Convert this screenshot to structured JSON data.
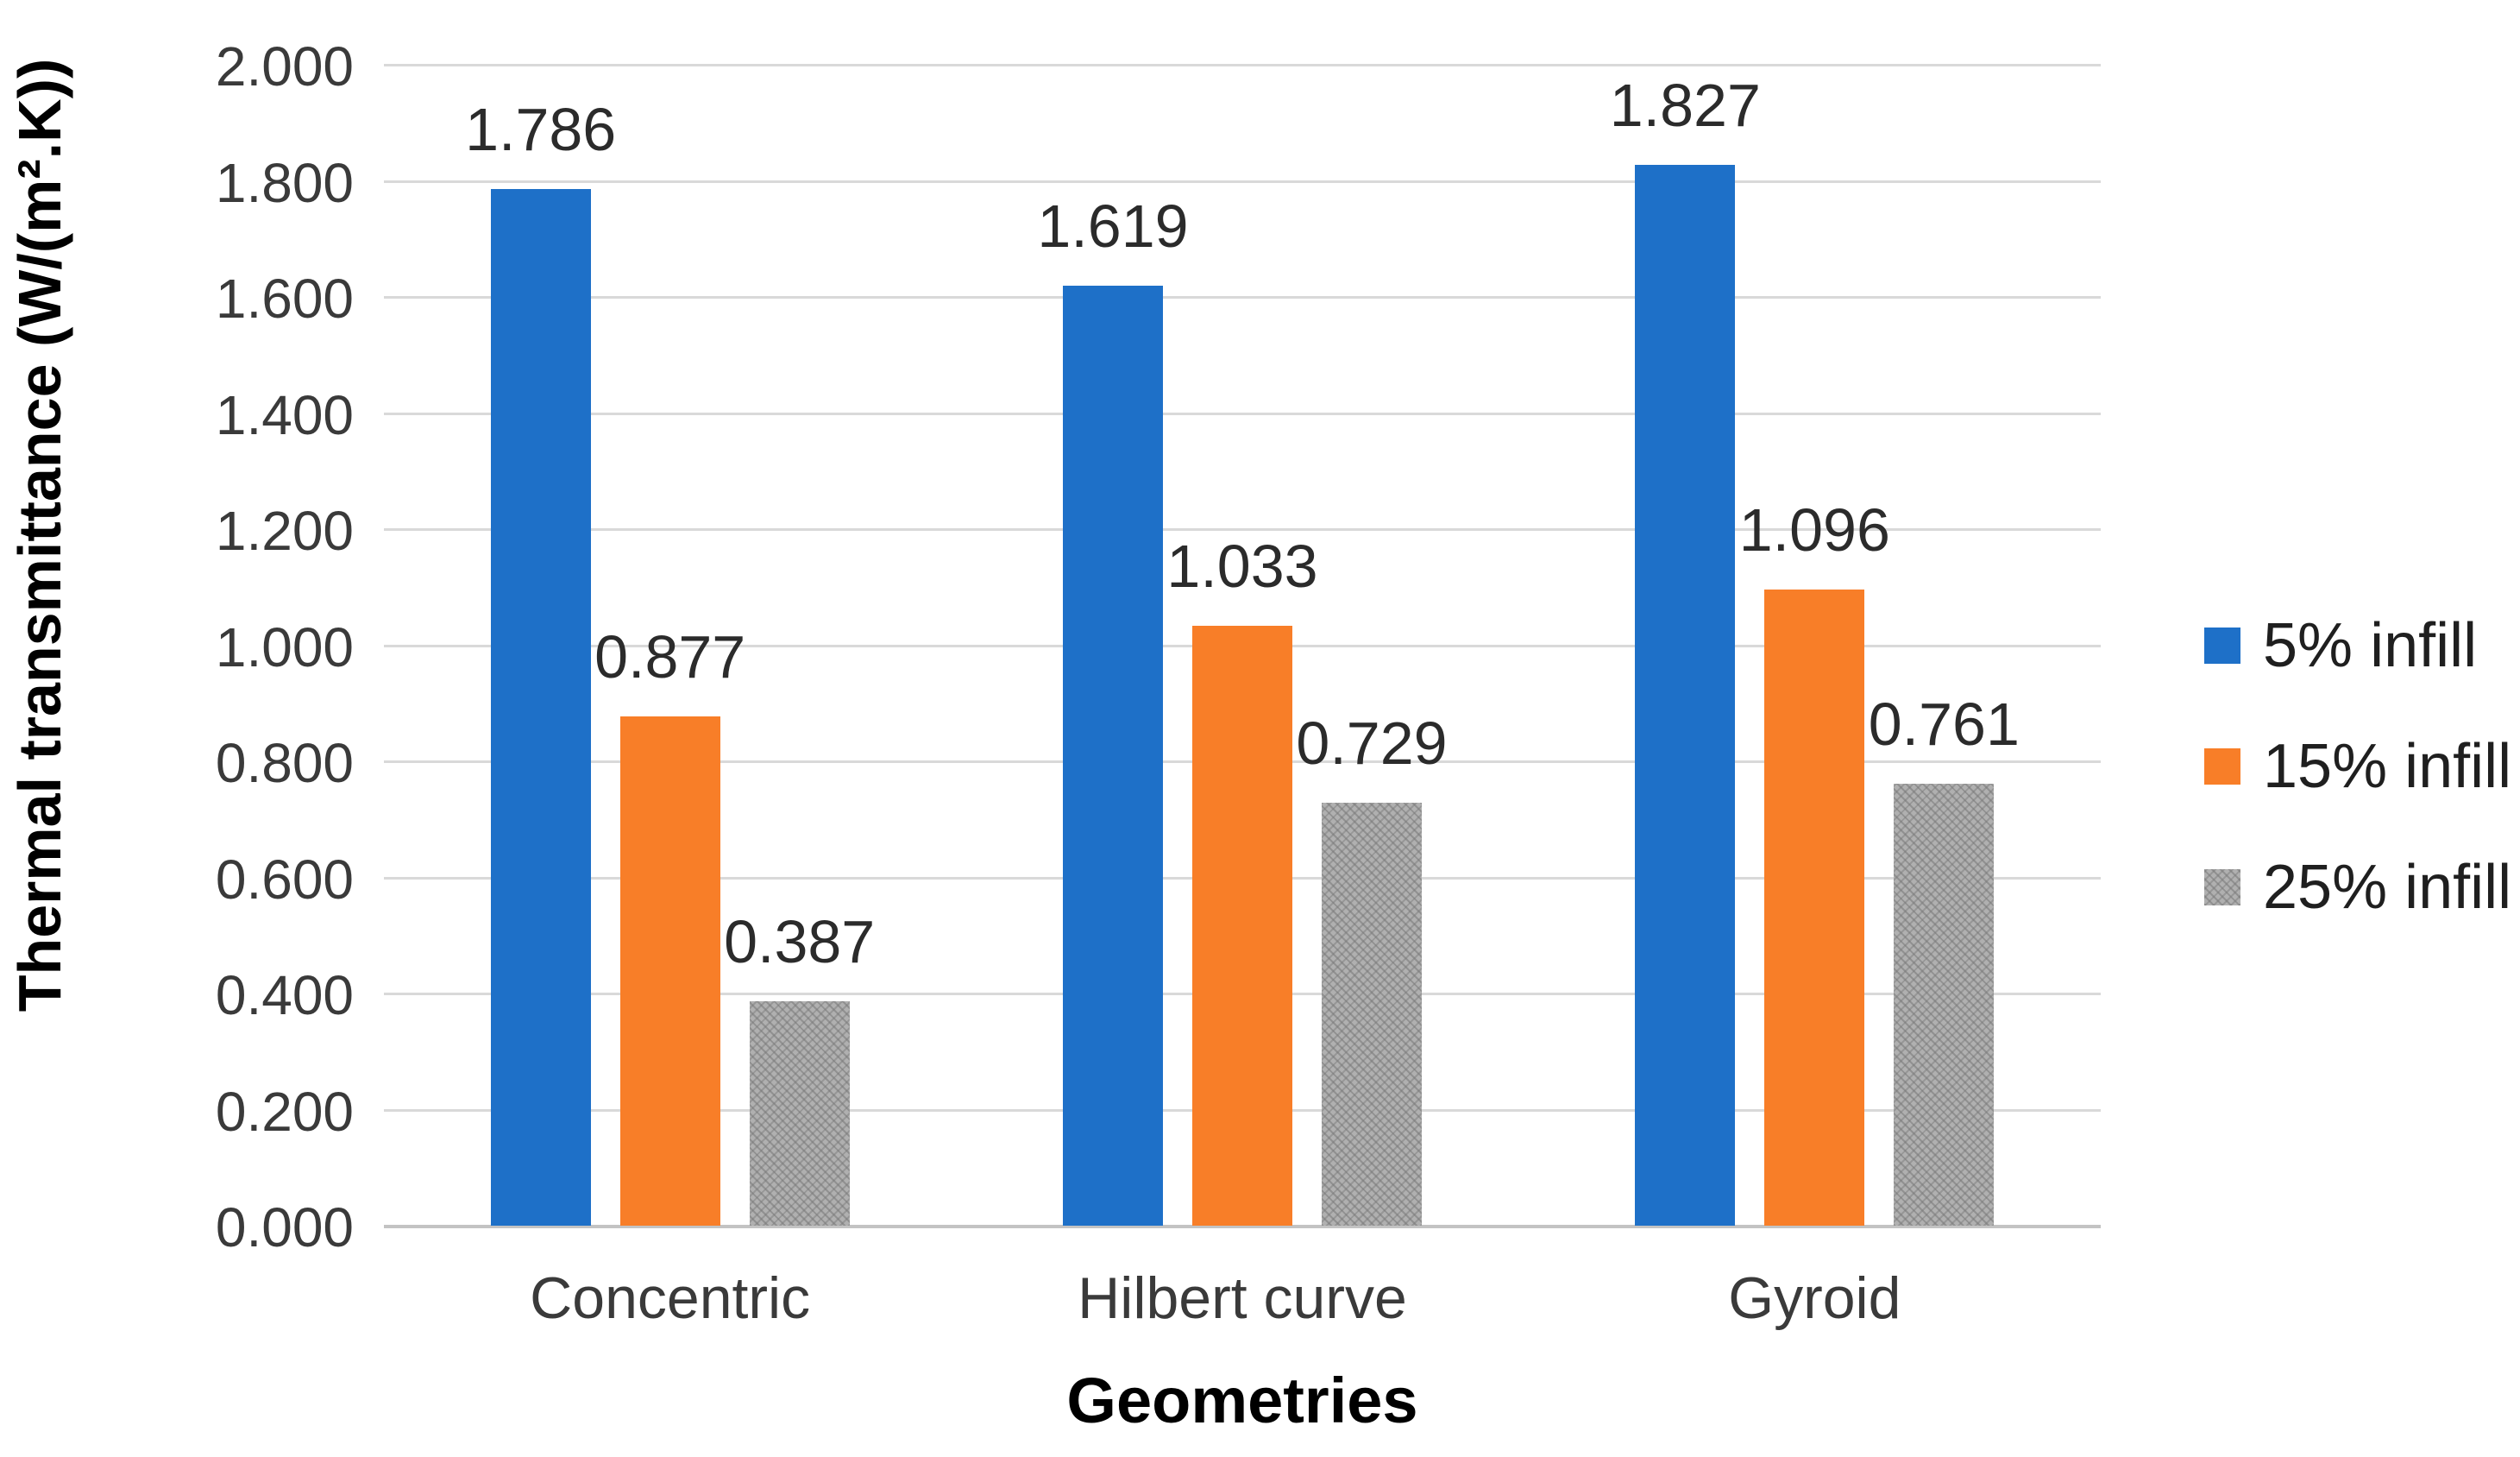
{
  "chart_data": {
    "type": "bar",
    "title": "",
    "categories": [
      "Concentric",
      "Hilbert curve",
      "Gyroid"
    ],
    "series": [
      {
        "name": "5% infill",
        "color": "#1E70C8",
        "fill_style": "solid-blue",
        "values": [
          1.786,
          1.619,
          1.827
        ],
        "value_labels": [
          "1.786",
          "1.619",
          "1.827"
        ]
      },
      {
        "name": "15% infill",
        "color": "#F87E28",
        "fill_style": "solid-orange",
        "values": [
          0.877,
          1.033,
          1.096
        ],
        "value_labels": [
          "0.877",
          "1.033",
          "1.096"
        ]
      },
      {
        "name": "25% infill",
        "color": "#ACACAC",
        "fill_style": "hatch",
        "values": [
          0.387,
          0.729,
          0.761
        ],
        "value_labels": [
          "0.387",
          "0.729",
          "0.761"
        ]
      }
    ],
    "xlabel": "Geometries",
    "ylabel": "Thermal transmittance (W/(m².K))",
    "ylim": [
      0,
      2
    ],
    "ytick_step": 0.2,
    "ytick_labels": [
      "0.000",
      "0.200",
      "0.400",
      "0.600",
      "0.800",
      "1.000",
      "1.200",
      "1.400",
      "1.600",
      "1.800",
      "2.000"
    ],
    "grid": "horizontal",
    "legend_position": "right"
  },
  "colors": {
    "series_blue": "#1E70C8",
    "series_orange": "#F87E28",
    "series_gray": "#ACACAC",
    "gridline": "#D9D9D9",
    "axis_line": "#C3C3C3",
    "tick_text": "#3A3A3A",
    "label_text": "#2B2B2B",
    "title_text": "#000000",
    "background": "#FFFFFF"
  }
}
